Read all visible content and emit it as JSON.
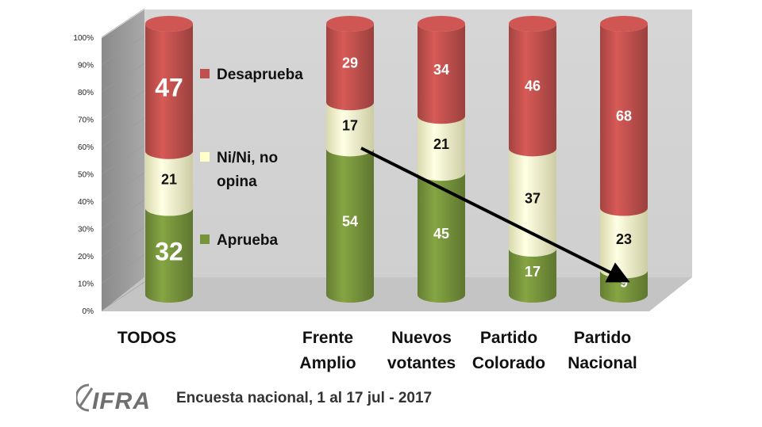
{
  "chart_data": {
    "type": "bar",
    "stacked": true,
    "style": "3d-cylinder",
    "categories": [
      "TODOS",
      "Frente Amplio",
      "Nuevos votantes",
      "Partido Colorado",
      "Partido Nacional"
    ],
    "category_lines": [
      [
        "TODOS"
      ],
      [
        "Frente",
        "Amplio"
      ],
      [
        "Nuevos",
        "votantes"
      ],
      [
        "Partido",
        "Colorado"
      ],
      [
        "Partido",
        "Nacional"
      ]
    ],
    "series": [
      {
        "name": "Aprueba",
        "values": [
          32,
          54,
          45,
          17,
          9
        ]
      },
      {
        "name": "Ni/Ni, no opina",
        "values": [
          21,
          17,
          21,
          37,
          23
        ]
      },
      {
        "name": "Desaprueba",
        "values": [
          47,
          29,
          34,
          46,
          68
        ]
      }
    ],
    "yticks": [
      "0%",
      "10%",
      "20%",
      "30%",
      "40%",
      "50%",
      "60%",
      "70%",
      "80%",
      "90%",
      "100%"
    ],
    "ylim": [
      0,
      100
    ],
    "legend": {
      "placement": "inside-left",
      "entries": [
        {
          "series": 2,
          "lines": [
            "Desaprueba"
          ]
        },
        {
          "series": 1,
          "lines": [
            "Ni/Ni, no",
            "opina"
          ]
        },
        {
          "series": 0,
          "lines": [
            "Aprueba"
          ]
        }
      ]
    },
    "annotation": "arrow from Frente Amplio Ni/Ni segment to Partido Nacional Aprueba segment",
    "colors": {
      "Aprueba": "#77933c",
      "Ni/Ni, no opina": "#ffffcc",
      "Desaprueba": "#c0504d"
    }
  },
  "footer": {
    "text": "Encuesta nacional,  1 al 17 jul - 2017"
  },
  "logo": {
    "text": "CIFRA"
  }
}
